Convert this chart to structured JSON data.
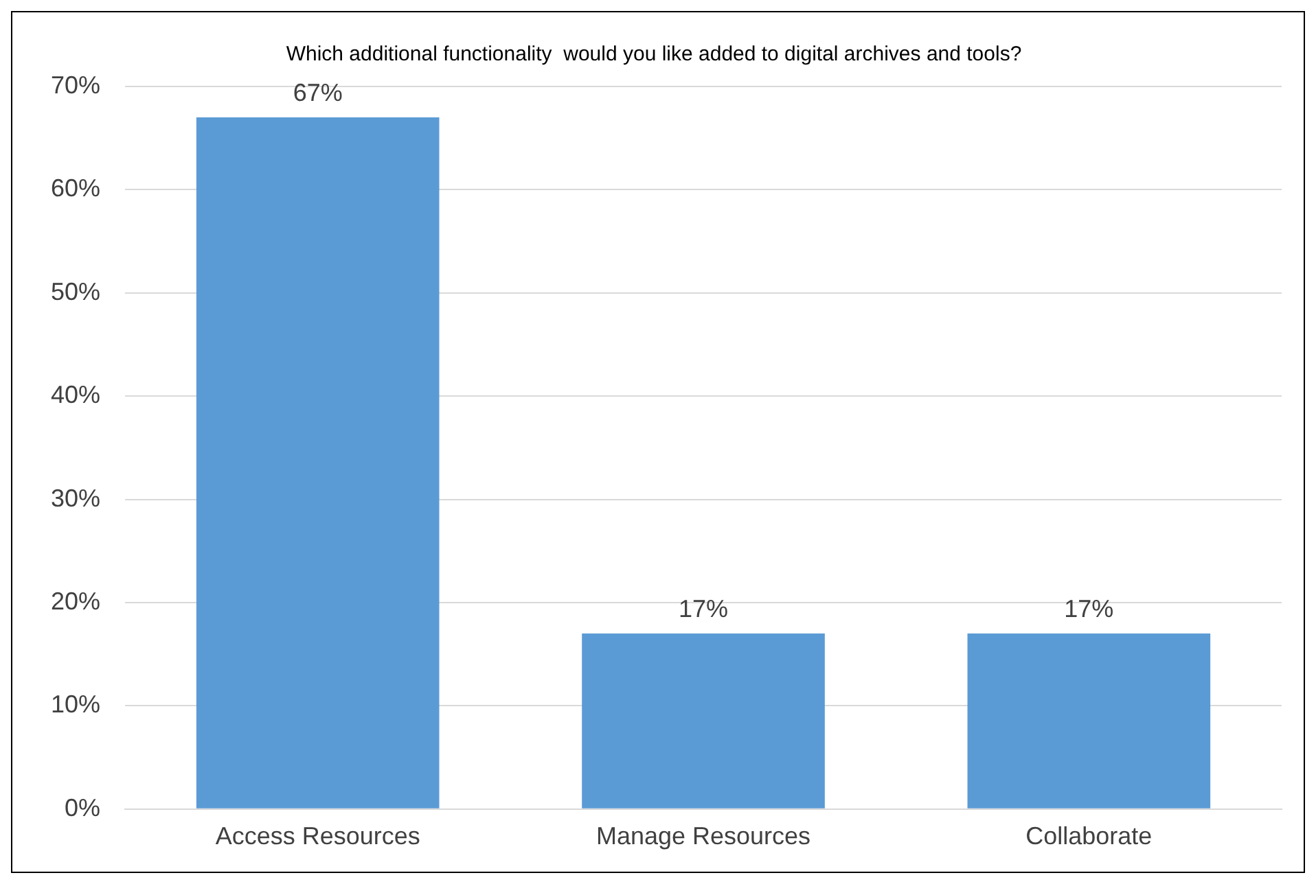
{
  "chart_data": {
    "type": "bar",
    "title": "Which additional functionality  would you like added to digital archives and tools?",
    "categories": [
      "Access Resources",
      "Manage Resources",
      "Collaborate"
    ],
    "values": [
      67,
      17,
      17
    ],
    "color": "#5b9bd5",
    "value_labels": [
      "67%",
      "17%",
      "17%"
    ],
    "ylim": [
      0,
      70
    ],
    "yticks": [
      {
        "value": 0,
        "label": "0%"
      },
      {
        "value": 10,
        "label": "10%"
      },
      {
        "value": 20,
        "label": "20%"
      },
      {
        "value": 30,
        "label": "30%"
      },
      {
        "value": 40,
        "label": "40%"
      },
      {
        "value": 50,
        "label": "50%"
      },
      {
        "value": 60,
        "label": "60%"
      },
      {
        "value": 70,
        "label": "70%"
      }
    ],
    "grid": "y",
    "legend": false
  }
}
